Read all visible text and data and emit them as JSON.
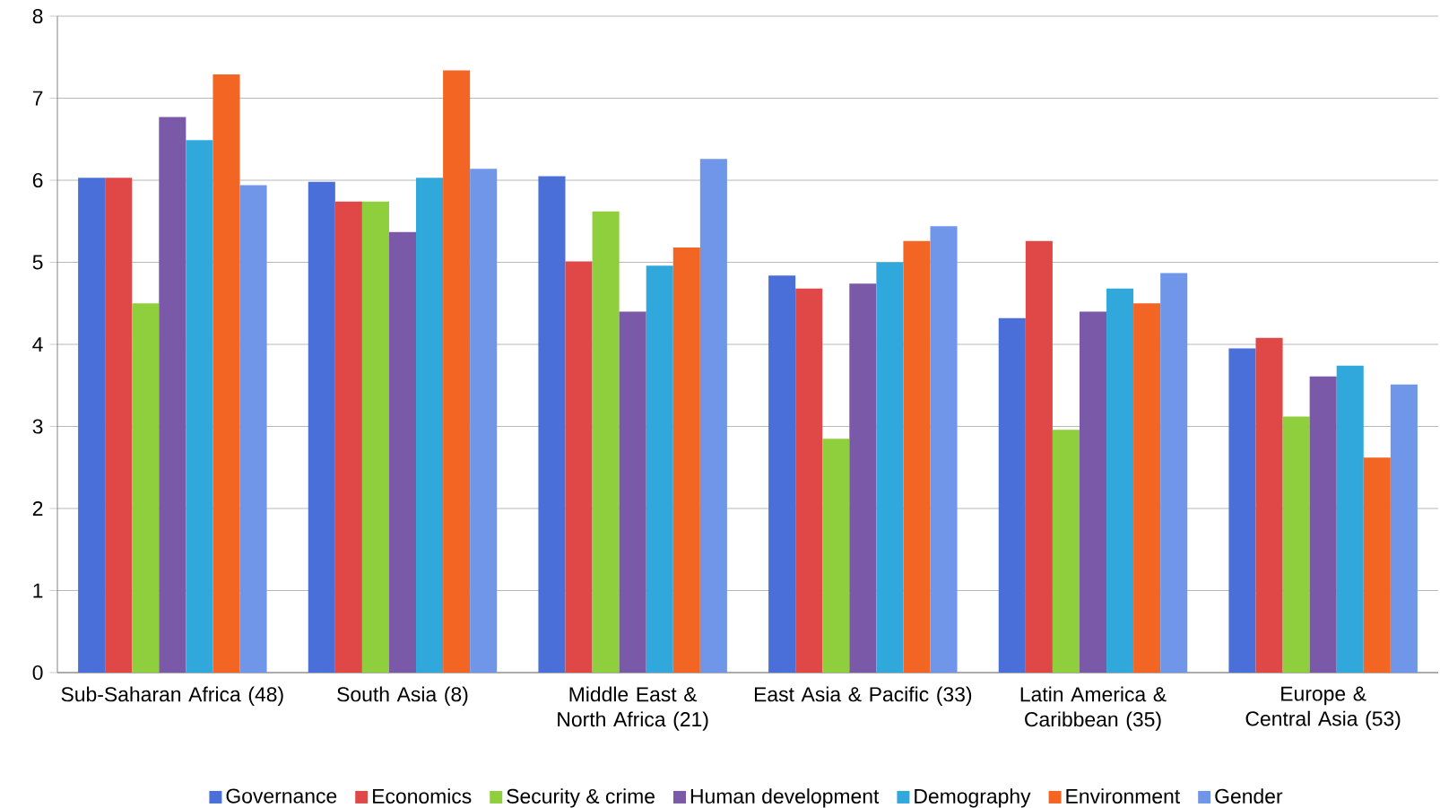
{
  "chart_data": {
    "type": "bar",
    "categories": [
      "Sub-Saharan Africa (48)",
      "South Asia (8)",
      "Middle East & North Africa (21)",
      "East Asia & Pacific (33)",
      "Latin America & Caribbean (35)",
      "Europe & Central Asia (53)"
    ],
    "series": [
      {
        "name": "Governance",
        "color": "#4a6fd8",
        "values": [
          6.03,
          5.98,
          6.05,
          4.84,
          4.32,
          3.95
        ]
      },
      {
        "name": "Economics",
        "color": "#e04848",
        "values": [
          6.03,
          5.74,
          5.01,
          4.68,
          5.26,
          4.08
        ]
      },
      {
        "name": "Security & crime",
        "color": "#8fce3c",
        "values": [
          4.5,
          5.74,
          5.62,
          2.85,
          2.96,
          3.12
        ]
      },
      {
        "name": "Human development",
        "color": "#7a5aa8",
        "values": [
          6.77,
          5.37,
          4.4,
          4.74,
          4.4,
          3.61
        ]
      },
      {
        "name": "Demography",
        "color": "#31a8dc",
        "values": [
          6.49,
          6.03,
          4.96,
          5.0,
          4.68,
          3.74
        ]
      },
      {
        "name": "Environment",
        "color": "#f26522",
        "values": [
          7.29,
          7.34,
          5.18,
          5.26,
          4.5,
          2.62
        ]
      },
      {
        "name": "Gender",
        "color": "#6f96e8",
        "values": [
          5.94,
          6.14,
          6.26,
          5.44,
          4.87,
          3.51
        ]
      }
    ],
    "ylim": [
      0,
      8
    ],
    "yticks": [
      0,
      1,
      2,
      3,
      4,
      5,
      6,
      7,
      8
    ],
    "grid": "y",
    "legend": "bottom"
  }
}
